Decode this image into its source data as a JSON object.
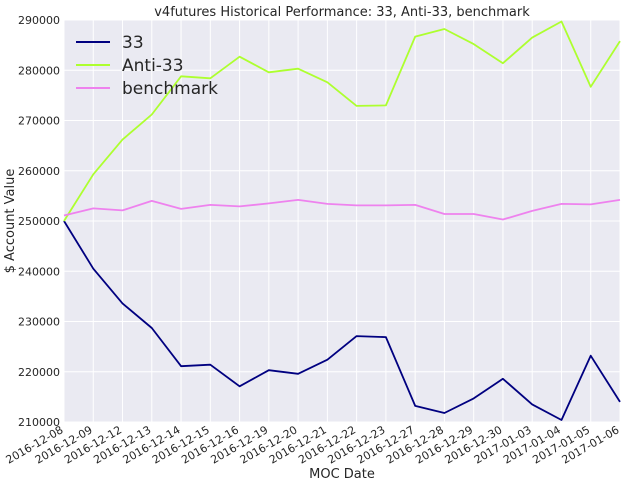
{
  "chart_data": {
    "type": "line",
    "title": "v4futures Historical Performance: 33, Anti-33, benchmark",
    "xlabel": "MOC Date",
    "ylabel": "$ Account Value",
    "ylim": [
      210000,
      290000
    ],
    "yticks": [
      210000,
      220000,
      230000,
      240000,
      250000,
      260000,
      270000,
      280000,
      290000
    ],
    "grid": true,
    "legend_position": "top-left",
    "x": [
      "2016-12-08",
      "2016-12-09",
      "2016-12-12",
      "2016-12-13",
      "2016-12-14",
      "2016-12-15",
      "2016-12-16",
      "2016-12-19",
      "2016-12-20",
      "2016-12-21",
      "2016-12-22",
      "2016-12-23",
      "2016-12-27",
      "2016-12-28",
      "2016-12-29",
      "2016-12-30",
      "2017-01-03",
      "2017-01-04",
      "2017-01-05",
      "2017-01-06"
    ],
    "series": [
      {
        "name": "33",
        "color": "#000080",
        "values": [
          250000,
          240500,
          233600,
          228700,
          221100,
          221400,
          217100,
          220300,
          219600,
          222400,
          227100,
          226900,
          213200,
          211800,
          214700,
          218600,
          213500,
          210400,
          223200,
          214000
        ]
      },
      {
        "name": "Anti-33",
        "color": "#adff2f",
        "values": [
          250000,
          259300,
          266200,
          271200,
          278800,
          278400,
          282700,
          279600,
          280300,
          277600,
          272900,
          273000,
          286700,
          288200,
          285200,
          281400,
          286500,
          289700,
          276700,
          285800
        ]
      },
      {
        "name": "benchmark",
        "color": "#ee82ee",
        "values": [
          251100,
          252500,
          252100,
          254000,
          252400,
          253200,
          252900,
          253500,
          254200,
          253400,
          253100,
          253100,
          253200,
          251400,
          251400,
          250300,
          252000,
          253400,
          253300,
          254200
        ]
      }
    ]
  }
}
